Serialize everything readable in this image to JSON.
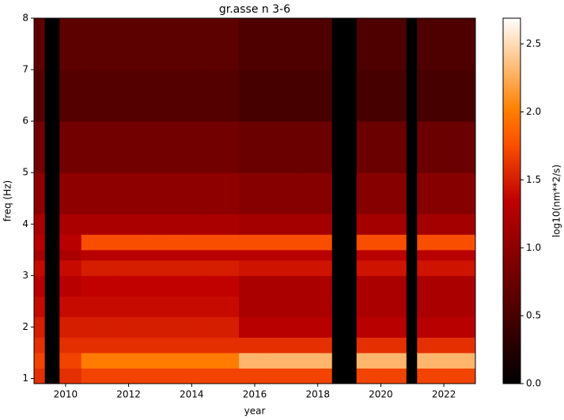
{
  "chart_data": {
    "type": "heatmap",
    "title": "gr.asse n 3-6",
    "xlabel": "year",
    "ylabel": "freq (Hz)",
    "colorbar_label": "log10(nm**2/s)",
    "colormap": "gist_heat",
    "missing_color": "#000000",
    "x_edges": [
      2009,
      2009.33,
      2009.81,
      2010.5,
      2011.5,
      2012.5,
      2013.5,
      2014.5,
      2015.5,
      2016.5,
      2017.5,
      2018.44,
      2019.23,
      2020,
      2020.8,
      2021.15,
      2022,
      2023
    ],
    "y_edges": [
      0.9,
      1.2,
      1.5,
      1.8,
      2.2,
      2.6,
      3.0,
      3.3,
      3.5,
      3.8,
      4.2,
      5,
      6,
      7,
      8
    ],
    "values": [
      [
        1.6,
        null,
        1.6,
        1.7,
        1.7,
        1.7,
        1.7,
        1.7,
        1.7,
        1.7,
        1.7,
        null,
        1.7,
        1.7,
        null,
        1.7,
        1.7
      ],
      [
        1.7,
        null,
        1.7,
        2.0,
        2.0,
        2.0,
        2.0,
        2.0,
        2.3,
        2.3,
        2.3,
        null,
        2.3,
        2.3,
        null,
        2.3,
        2.3
      ],
      [
        1.6,
        null,
        1.6,
        1.6,
        1.6,
        1.6,
        1.6,
        1.6,
        1.6,
        1.6,
        1.6,
        null,
        1.6,
        1.6,
        null,
        1.6,
        1.6
      ],
      [
        1.5,
        null,
        1.5,
        1.5,
        1.5,
        1.5,
        1.5,
        1.5,
        1.3,
        1.3,
        1.3,
        null,
        1.3,
        1.3,
        null,
        1.3,
        1.3
      ],
      [
        1.4,
        null,
        1.4,
        1.4,
        1.4,
        1.4,
        1.4,
        1.4,
        1.2,
        1.2,
        1.2,
        null,
        1.2,
        1.2,
        null,
        1.2,
        1.2
      ],
      [
        1.3,
        null,
        1.3,
        1.35,
        1.35,
        1.35,
        1.35,
        1.35,
        1.2,
        1.2,
        1.2,
        null,
        1.2,
        1.2,
        null,
        1.2,
        1.2
      ],
      [
        1.4,
        null,
        1.4,
        1.5,
        1.5,
        1.5,
        1.5,
        1.5,
        1.45,
        1.45,
        1.45,
        null,
        1.45,
        1.45,
        null,
        1.45,
        1.45
      ],
      [
        1.2,
        null,
        1.2,
        1.3,
        1.3,
        1.3,
        1.3,
        1.3,
        1.3,
        1.3,
        1.3,
        null,
        1.3,
        1.3,
        null,
        1.3,
        1.3
      ],
      [
        1.3,
        null,
        1.3,
        1.75,
        1.75,
        1.75,
        1.75,
        1.75,
        1.75,
        1.75,
        1.75,
        null,
        1.75,
        1.75,
        null,
        1.75,
        1.75
      ],
      [
        1.2,
        null,
        1.2,
        1.2,
        1.2,
        1.2,
        1.2,
        1.2,
        1.15,
        1.15,
        1.15,
        null,
        1.15,
        1.15,
        null,
        1.15,
        1.15
      ],
      [
        1.0,
        null,
        1.0,
        1.0,
        1.0,
        1.0,
        1.0,
        1.0,
        0.95,
        0.95,
        0.95,
        null,
        0.95,
        0.95,
        null,
        0.95,
        0.95
      ],
      [
        0.8,
        null,
        0.8,
        0.8,
        0.8,
        0.8,
        0.8,
        0.8,
        0.75,
        0.75,
        0.75,
        null,
        0.75,
        0.75,
        null,
        0.75,
        0.75
      ],
      [
        0.6,
        null,
        0.6,
        0.6,
        0.6,
        0.6,
        0.6,
        0.6,
        0.5,
        0.5,
        0.5,
        null,
        0.5,
        0.5,
        null,
        0.5,
        0.5
      ],
      [
        0.65,
        null,
        0.65,
        0.65,
        0.65,
        0.65,
        0.65,
        0.65,
        0.55,
        0.55,
        0.55,
        null,
        0.55,
        0.55,
        null,
        0.55,
        0.55
      ]
    ],
    "xlim": [
      2009,
      2023
    ],
    "xticks": [
      2010,
      2012,
      2014,
      2016,
      2018,
      2020,
      2022
    ],
    "ylim": [
      0.9,
      8
    ],
    "yticks": [
      1,
      2,
      3,
      4,
      5,
      6,
      7,
      8
    ],
    "clim": [
      0,
      2.69
    ],
    "cticks": [
      {
        "value": 0,
        "label": "0.0"
      },
      0.5,
      {
        "value": 1,
        "label": "1.0"
      },
      1.5,
      {
        "value": 2,
        "label": "2.0"
      },
      2.5
    ]
  }
}
